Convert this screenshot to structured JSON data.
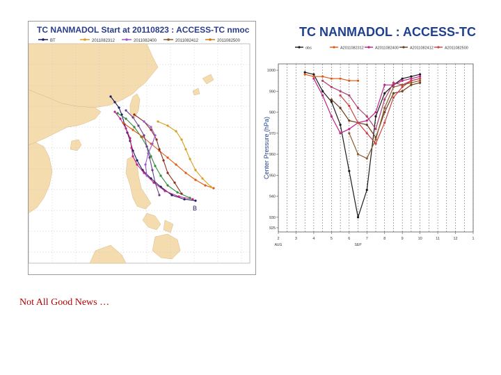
{
  "caption": "Not All Good News …",
  "track_map": {
    "title": "TC NANMADOL Start at 20110823 : ACCESS-TC nmoc",
    "legend": [
      {
        "label": "BT",
        "color": "#1a1a66"
      },
      {
        "label": "2011082312",
        "color": "#d4a020"
      },
      {
        "label": "2011082400",
        "color": "#9b59d0"
      },
      {
        "label": "2011082412",
        "color": "#8b5a2b"
      },
      {
        "label": "2011082500",
        "color": "#d4781e"
      }
    ],
    "track_colors": {
      "bt": "#1a1a66",
      "c1": "#c0208a",
      "c2": "#2e8b3a",
      "c3": "#e05a10",
      "c4": "#6a3d8a",
      "c5": "#8b2d1a"
    },
    "land_color": "#f5dcae",
    "sea_color": "#ffffff"
  },
  "chart_data": {
    "type": "line",
    "title": "TC NANMADOL : ACCESS-TC",
    "xlabel": "",
    "ylabel": "Center Pressure (hPa)",
    "x_ticks": [
      "2",
      "3",
      "4",
      "5",
      "6",
      "7",
      "8",
      "9",
      "10",
      "11",
      "12",
      "1"
    ],
    "x_sub": [
      {
        "text": "AUG",
        "at": 0
      },
      {
        "text": "SEP",
        "at": 4.5
      }
    ],
    "ylim": [
      923,
      1003
    ],
    "y_ticks": [
      1000,
      990,
      980,
      970,
      960,
      950,
      940,
      930,
      925
    ],
    "grid": "vertical-dashed",
    "legend_position": "top",
    "legend": [
      {
        "label": "obs",
        "color": "#1a1a1a"
      },
      {
        "label": "A2011082312",
        "color": "#e05a10"
      },
      {
        "label": "A2011082400",
        "color": "#c0208a"
      },
      {
        "label": "A2011082412",
        "color": "#6a3d1a"
      },
      {
        "label": "A2011082500",
        "color": "#d04040"
      }
    ],
    "series": [
      {
        "color": "#1a1a1a",
        "points": [
          [
            1.5,
            999
          ],
          [
            2.0,
            998
          ],
          [
            2.5,
            990
          ],
          [
            3.0,
            985
          ],
          [
            3.5,
            974
          ],
          [
            4.0,
            952
          ],
          [
            4.5,
            930
          ],
          [
            5.0,
            943
          ],
          [
            5.5,
            978
          ],
          [
            6.0,
            989
          ],
          [
            6.5,
            993
          ],
          [
            7.0,
            996
          ],
          [
            7.5,
            997
          ],
          [
            8.0,
            998
          ]
        ]
      },
      {
        "color": "#e05a10",
        "points": [
          [
            1.5,
            998
          ],
          [
            2.0,
            997
          ],
          [
            2.5,
            997
          ],
          [
            3.0,
            996
          ],
          [
            3.5,
            996
          ],
          [
            4.0,
            995
          ],
          [
            4.5,
            995
          ]
        ]
      },
      {
        "color": "#c0208a",
        "points": [
          [
            2.0,
            996
          ],
          [
            2.5,
            988
          ],
          [
            3.0,
            978
          ],
          [
            3.5,
            970
          ],
          [
            4.0,
            972
          ],
          [
            4.5,
            975
          ],
          [
            5.0,
            976
          ],
          [
            5.5,
            980
          ],
          [
            6.0,
            993
          ],
          [
            6.5,
            993
          ],
          [
            7.0,
            995
          ],
          [
            7.5,
            996
          ],
          [
            8.0,
            997
          ]
        ]
      },
      {
        "color": "#b04070",
        "points": [
          [
            2.5,
            995
          ],
          [
            3.0,
            992
          ],
          [
            3.5,
            990
          ],
          [
            4.0,
            988
          ],
          [
            4.5,
            982
          ],
          [
            5.0,
            978
          ],
          [
            5.5,
            972
          ],
          [
            6.0,
            986
          ],
          [
            6.5,
            994
          ],
          [
            7.0,
            993
          ],
          [
            7.5,
            995
          ],
          [
            8.0,
            996
          ]
        ]
      },
      {
        "color": "#6a3d1a",
        "points": [
          [
            3.0,
            986
          ],
          [
            3.5,
            982
          ],
          [
            4.0,
            976
          ],
          [
            4.5,
            975
          ],
          [
            5.0,
            974
          ],
          [
            5.5,
            968
          ],
          [
            6.0,
            980
          ],
          [
            6.5,
            989
          ],
          [
            7.0,
            990
          ],
          [
            7.5,
            993
          ],
          [
            8.0,
            994
          ]
        ]
      },
      {
        "color": "#d04040",
        "points": [
          [
            3.5,
            988
          ],
          [
            4.0,
            983
          ],
          [
            4.5,
            975
          ],
          [
            5.0,
            970
          ],
          [
            5.5,
            965
          ],
          [
            6.0,
            975
          ],
          [
            6.5,
            987
          ],
          [
            7.0,
            992
          ],
          [
            7.5,
            995
          ],
          [
            8.0,
            996
          ]
        ]
      },
      {
        "color": "#8b5a2b",
        "points": [
          [
            4.0,
            970
          ],
          [
            4.5,
            960
          ],
          [
            5.0,
            958
          ],
          [
            5.5,
            967
          ],
          [
            6.0,
            982
          ],
          [
            6.5,
            992
          ],
          [
            7.0,
            993
          ],
          [
            7.5,
            994
          ],
          [
            8.0,
            995
          ]
        ]
      }
    ]
  }
}
